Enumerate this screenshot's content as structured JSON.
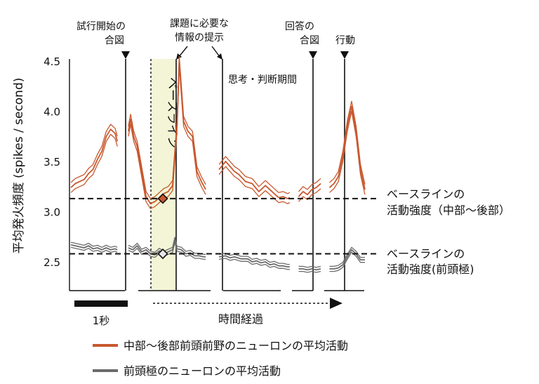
{
  "colors": {
    "pfc_mid_post": "#c8582e",
    "pfc_mid_post_shade": "#e8a37f",
    "frontal_pole": "#6b6b6b",
    "frontal_pole_shade": "#b5b5b5",
    "baseline_fill": "#f3f5d6",
    "axis": "#111111"
  },
  "chart_data": {
    "type": "line",
    "ylabel": "平均発火頻度 (spikes / second)",
    "ylim": [
      2.3,
      4.5
    ],
    "yticks": [
      "4.5",
      "4.0",
      "3.5",
      "3.0",
      "2.5"
    ],
    "ytick_values": [
      4.5,
      4.0,
      3.5,
      3.0,
      2.5
    ],
    "x_axis_label": "時間経過",
    "scale_bar_label": "1秒",
    "baseline_window_label": "ベースライン",
    "events": [
      {
        "id": "start_cue",
        "label": [
          "試行開始の",
          "合図"
        ],
        "marker": "triangle"
      },
      {
        "id": "info",
        "label": [
          "課題に必要な",
          "情報の提示"
        ],
        "marker": "arrow"
      },
      {
        "id": "answer_cue",
        "label": [
          "回答の",
          "合図"
        ],
        "marker": "triangle"
      },
      {
        "id": "action",
        "label": [
          "行動"
        ],
        "marker": "triangle"
      }
    ],
    "period_label": "思考・判断期間",
    "baseline_levels": [
      {
        "series": "中部〜後部前頭前野のニューロンの平均活動",
        "value": 3.13,
        "label": [
          "ベースラインの",
          "活動強度（中部〜後部）"
        ]
      },
      {
        "series": "前頭極のニューロンの平均活動",
        "value": 2.58,
        "label": [
          "ベースラインの",
          "活動強度(前頭極)"
        ]
      }
    ],
    "series": [
      {
        "name": "中部〜後部前頭前野のニューロンの平均活動",
        "color": "#c8582e",
        "band": 0.05,
        "segments": [
          {
            "x": [
              0,
              0.1,
              0.2,
              0.3,
              0.4,
              0.5,
              0.6,
              0.7,
              0.8,
              0.9,
              1.0,
              1.05
            ],
            "y": [
              3.24,
              3.28,
              3.3,
              3.32,
              3.38,
              3.42,
              3.52,
              3.6,
              3.75,
              3.82,
              3.78,
              3.7
            ]
          },
          {
            "x": [
              1.3,
              1.35,
              1.42,
              1.5,
              1.6,
              1.7,
              1.8,
              1.9,
              2.0,
              2.1,
              2.2,
              2.3,
              2.4,
              2.45,
              2.55,
              2.65,
              2.75,
              2.85,
              2.95,
              3.05
            ],
            "y": [
              3.8,
              3.92,
              3.75,
              3.65,
              3.4,
              3.15,
              3.08,
              3.1,
              3.14,
              3.18,
              3.2,
              3.26,
              3.85,
              4.5,
              3.9,
              3.8,
              3.75,
              3.4,
              3.3,
              3.22
            ]
          },
          {
            "x": [
              3.35,
              3.5,
              3.6,
              3.7,
              3.8,
              3.95,
              4.1,
              4.25,
              4.4,
              4.55,
              4.7,
              4.8,
              4.9,
              4.95
            ],
            "y": [
              3.42,
              3.5,
              3.45,
              3.4,
              3.37,
              3.3,
              3.28,
              3.2,
              3.26,
              3.2,
              3.14,
              3.15,
              3.13,
              3.14
            ]
          },
          {
            "x": [
              5.15,
              5.25,
              5.35,
              5.45,
              5.55,
              5.65
            ],
            "y": [
              3.15,
              3.2,
              3.17,
              3.22,
              3.24,
              3.28
            ]
          },
          {
            "x": [
              5.85,
              5.95,
              6.05,
              6.15,
              6.25,
              6.35,
              6.45,
              6.55,
              6.65
            ],
            "y": [
              3.24,
              3.28,
              3.35,
              3.55,
              3.85,
              4.05,
              3.8,
              3.42,
              3.22
            ]
          }
        ]
      },
      {
        "name": "前頭極のニューロンの平均活動",
        "color": "#6b6b6b",
        "band": 0.025,
        "segments": [
          {
            "x": [
              0,
              0.1,
              0.2,
              0.3,
              0.4,
              0.5,
              0.6,
              0.7,
              0.8,
              0.9,
              1.0,
              1.05
            ],
            "y": [
              2.67,
              2.66,
              2.65,
              2.64,
              2.66,
              2.63,
              2.64,
              2.62,
              2.64,
              2.62,
              2.63,
              2.62
            ]
          },
          {
            "x": [
              1.3,
              1.4,
              1.5,
              1.6,
              1.7,
              1.8,
              1.9,
              2.0,
              2.1,
              2.2,
              2.3,
              2.35,
              2.4,
              2.5,
              2.6,
              2.7,
              2.8,
              2.9,
              3.0,
              3.05
            ],
            "y": [
              2.64,
              2.62,
              2.66,
              2.6,
              2.62,
              2.58,
              2.57,
              2.61,
              2.58,
              2.6,
              2.62,
              2.72,
              2.63,
              2.62,
              2.58,
              2.59,
              2.56,
              2.56,
              2.55,
              2.55
            ]
          },
          {
            "x": [
              3.35,
              3.5,
              3.6,
              3.7,
              3.85,
              4.0,
              4.1,
              4.2,
              4.3,
              4.4,
              4.5,
              4.6,
              4.7,
              4.8,
              4.9,
              4.95
            ],
            "y": [
              2.55,
              2.56,
              2.54,
              2.55,
              2.53,
              2.53,
              2.5,
              2.51,
              2.49,
              2.5,
              2.47,
              2.48,
              2.46,
              2.46,
              2.45,
              2.45
            ]
          },
          {
            "x": [
              5.15,
              5.25,
              5.35,
              5.45,
              5.55,
              5.65
            ],
            "y": [
              2.43,
              2.43,
              2.42,
              2.43,
              2.42,
              2.43
            ]
          },
          {
            "x": [
              5.85,
              5.95,
              6.05,
              6.15,
              6.25,
              6.35,
              6.45,
              6.55,
              6.65
            ],
            "y": [
              2.43,
              2.43,
              2.44,
              2.47,
              2.55,
              2.62,
              2.58,
              2.52,
              2.52
            ]
          }
        ]
      }
    ],
    "baseline_markers": [
      {
        "series": "中部〜後部前頭前野のニューロンの平均活動",
        "x": 2.0,
        "y": 3.13
      },
      {
        "series": "前頭極のニューロンの平均活動",
        "x": 2.0,
        "y": 2.58
      }
    ]
  },
  "legend": [
    {
      "name": "中部〜後部前頭前野のニューロンの平均活動",
      "color": "#c8582e"
    },
    {
      "name": "前頭極のニューロンの平均活動",
      "color": "#6b6b6b"
    }
  ]
}
